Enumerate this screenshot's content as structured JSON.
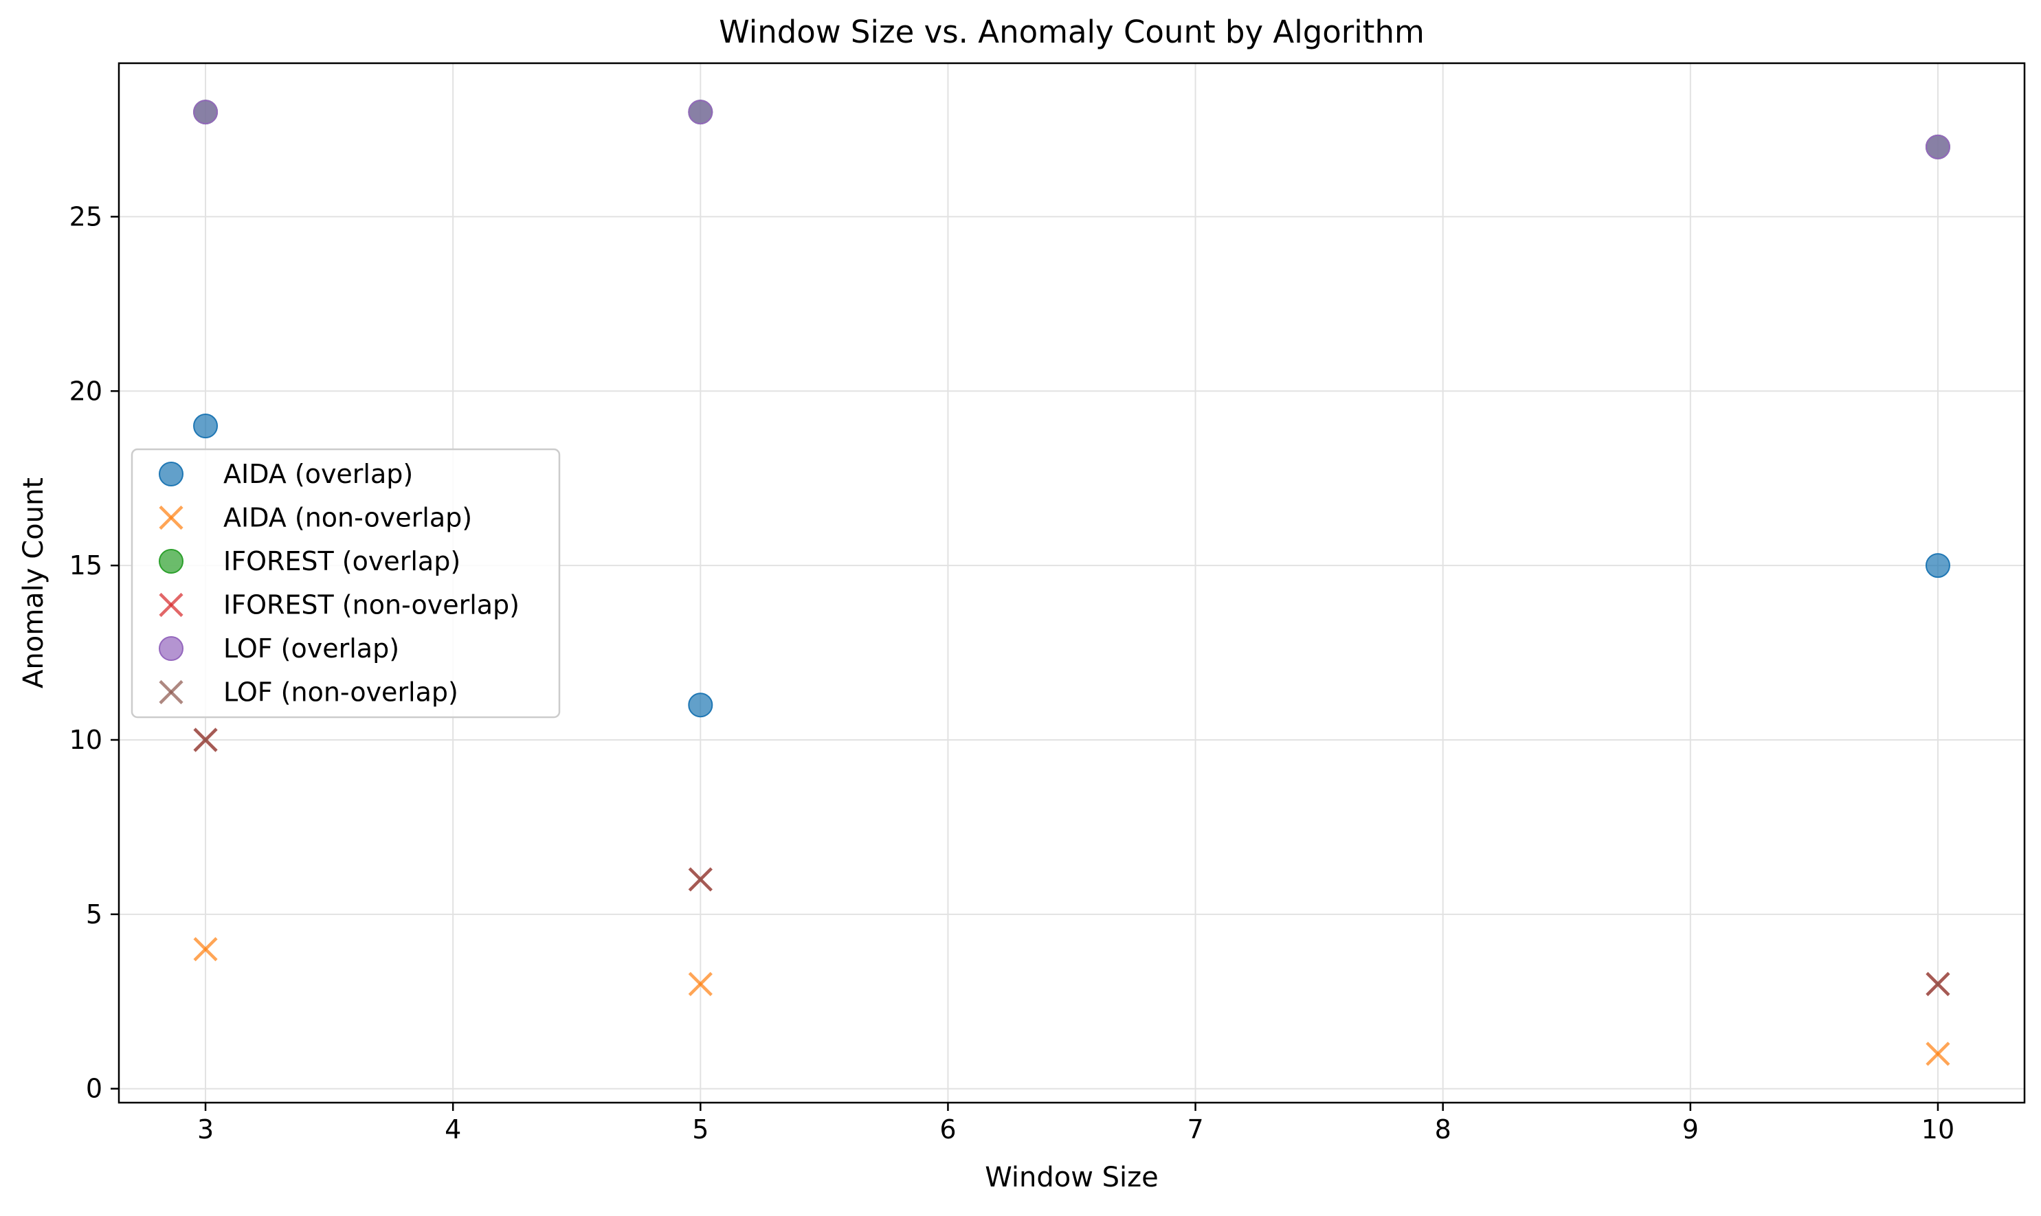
{
  "chart_data": {
    "type": "scatter",
    "title": "Window Size vs. Anomaly Count by Algorithm",
    "xlabel": "Window Size",
    "ylabel": "Anomaly Count",
    "xlim": [
      2.65,
      10.35
    ],
    "ylim": [
      -0.4,
      29.4
    ],
    "xticks": [
      3,
      4,
      5,
      6,
      7,
      8,
      9,
      10
    ],
    "yticks": [
      0,
      5,
      10,
      15,
      20,
      25
    ],
    "grid": true,
    "legend_position": "center-left",
    "series": [
      {
        "name": "AIDA (overlap)",
        "marker": "circle",
        "color": "#1f77b4",
        "points": [
          {
            "x": 3,
            "y": 19
          },
          {
            "x": 5,
            "y": 11
          },
          {
            "x": 10,
            "y": 15
          }
        ]
      },
      {
        "name": "AIDA (non-overlap)",
        "marker": "x",
        "color": "#ff7f0e",
        "points": [
          {
            "x": 3,
            "y": 4
          },
          {
            "x": 5,
            "y": 3
          },
          {
            "x": 10,
            "y": 1
          }
        ]
      },
      {
        "name": "IFOREST (overlap)",
        "marker": "circle",
        "color": "#2ca02c",
        "points": [
          {
            "x": 3,
            "y": 28
          },
          {
            "x": 5,
            "y": 28
          },
          {
            "x": 10,
            "y": 27
          }
        ]
      },
      {
        "name": "IFOREST (non-overlap)",
        "marker": "x",
        "color": "#d62728",
        "points": [
          {
            "x": 3,
            "y": 10
          },
          {
            "x": 5,
            "y": 6
          },
          {
            "x": 10,
            "y": 3
          }
        ]
      },
      {
        "name": "LOF (overlap)",
        "marker": "circle",
        "color": "#9467bd",
        "points": [
          {
            "x": 3,
            "y": 28
          },
          {
            "x": 5,
            "y": 28
          },
          {
            "x": 10,
            "y": 27
          }
        ]
      },
      {
        "name": "LOF (non-overlap)",
        "marker": "x",
        "color": "#8c564b",
        "points": [
          {
            "x": 3,
            "y": 10
          },
          {
            "x": 5,
            "y": 6
          },
          {
            "x": 10,
            "y": 3
          }
        ]
      }
    ]
  }
}
